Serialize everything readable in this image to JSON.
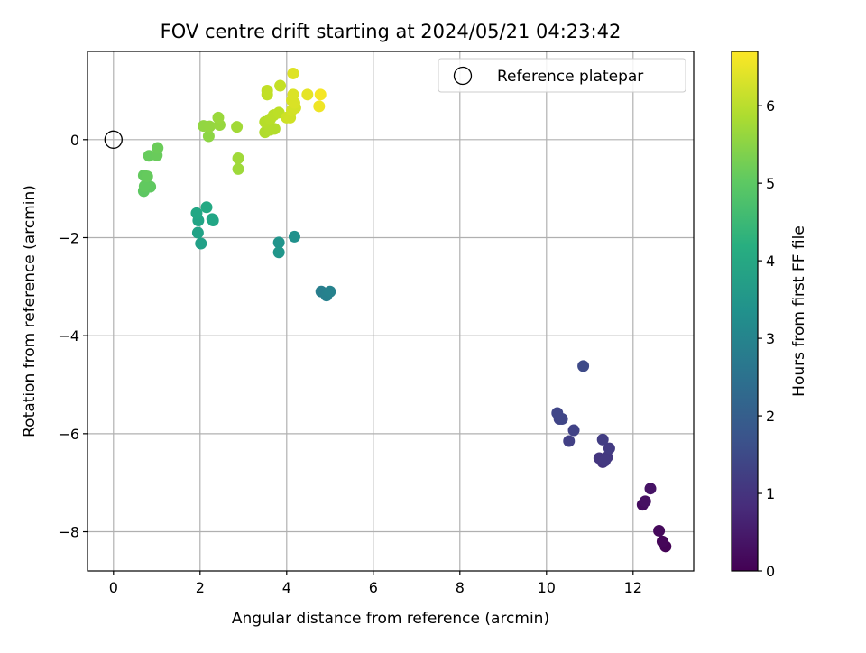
{
  "chart_data": {
    "type": "scatter",
    "title": "FOV centre drift starting at 2024/05/21 04:23:42",
    "xlabel": "Angular distance from reference (arcmin)",
    "ylabel": "Rotation from reference (arcmin)",
    "xlim": [
      -0.6,
      13.4
    ],
    "ylim": [
      -8.8,
      1.8
    ],
    "xticks": [
      0,
      2,
      4,
      6,
      8,
      10,
      12
    ],
    "yticks": [
      -8,
      -6,
      -4,
      -2,
      0
    ],
    "xtick_labels": [
      "0",
      "2",
      "4",
      "6",
      "8",
      "10",
      "12"
    ],
    "ytick_labels": [
      "−8",
      "−6",
      "−4",
      "−2",
      "0"
    ],
    "grid": true,
    "colormap": "viridis",
    "colorbar": {
      "label": "Hours from first FF file",
      "range": [
        0,
        6.7
      ],
      "ticks": [
        0,
        1,
        2,
        3,
        4,
        5,
        6
      ],
      "tick_labels": [
        "0",
        "1",
        "2",
        "3",
        "4",
        "5",
        "6"
      ]
    },
    "legend": {
      "position": "top-right",
      "entries": [
        {
          "label": "Reference platepar",
          "marker": "open-circle"
        }
      ]
    },
    "reference_point": {
      "x": 0,
      "y": 0
    },
    "points": [
      {
        "x": 12.75,
        "y": -8.3,
        "t": 0.05
      },
      {
        "x": 12.68,
        "y": -8.2,
        "t": 0.1
      },
      {
        "x": 12.6,
        "y": -7.98,
        "t": 0.15
      },
      {
        "x": 12.22,
        "y": -7.45,
        "t": 0.22
      },
      {
        "x": 12.28,
        "y": -7.38,
        "t": 0.28
      },
      {
        "x": 12.4,
        "y": -7.12,
        "t": 0.35
      },
      {
        "x": 11.3,
        "y": -6.58,
        "t": 1.0
      },
      {
        "x": 11.22,
        "y": -6.5,
        "t": 1.05
      },
      {
        "x": 11.4,
        "y": -6.48,
        "t": 1.08
      },
      {
        "x": 11.35,
        "y": -6.55,
        "t": 1.1
      },
      {
        "x": 11.45,
        "y": -6.3,
        "t": 1.15
      },
      {
        "x": 11.3,
        "y": -6.12,
        "t": 1.2
      },
      {
        "x": 10.52,
        "y": -6.15,
        "t": 1.25
      },
      {
        "x": 10.63,
        "y": -5.93,
        "t": 1.3
      },
      {
        "x": 10.3,
        "y": -5.7,
        "t": 1.35
      },
      {
        "x": 10.36,
        "y": -5.7,
        "t": 1.38
      },
      {
        "x": 10.25,
        "y": -5.58,
        "t": 1.4
      },
      {
        "x": 10.85,
        "y": -4.62,
        "t": 1.5
      },
      {
        "x": 4.8,
        "y": -3.1,
        "t": 2.85
      },
      {
        "x": 4.92,
        "y": -3.18,
        "t": 2.9
      },
      {
        "x": 5.0,
        "y": -3.1,
        "t": 2.95
      },
      {
        "x": 4.18,
        "y": -1.98,
        "t": 3.35
      },
      {
        "x": 3.82,
        "y": -2.1,
        "t": 3.45
      },
      {
        "x": 3.82,
        "y": -2.3,
        "t": 3.5
      },
      {
        "x": 2.02,
        "y": -2.12,
        "t": 3.8
      },
      {
        "x": 1.95,
        "y": -1.9,
        "t": 3.85
      },
      {
        "x": 1.96,
        "y": -1.65,
        "t": 3.9
      },
      {
        "x": 2.28,
        "y": -1.62,
        "t": 3.92
      },
      {
        "x": 2.3,
        "y": -1.65,
        "t": 3.95
      },
      {
        "x": 1.92,
        "y": -1.5,
        "t": 4.0
      },
      {
        "x": 2.15,
        "y": -1.38,
        "t": 4.05
      },
      {
        "x": 0.7,
        "y": -1.05,
        "t": 5.0
      },
      {
        "x": 0.85,
        "y": -0.96,
        "t": 5.03
      },
      {
        "x": 0.72,
        "y": -0.95,
        "t": 5.05
      },
      {
        "x": 0.7,
        "y": -0.73,
        "t": 5.08
      },
      {
        "x": 0.78,
        "y": -0.75,
        "t": 5.1
      },
      {
        "x": 0.82,
        "y": -0.33,
        "t": 5.12
      },
      {
        "x": 1.0,
        "y": -0.32,
        "t": 5.15
      },
      {
        "x": 1.02,
        "y": -0.17,
        "t": 5.18
      },
      {
        "x": 2.2,
        "y": 0.07,
        "t": 5.55
      },
      {
        "x": 2.08,
        "y": 0.28,
        "t": 5.6
      },
      {
        "x": 2.22,
        "y": 0.27,
        "t": 5.62
      },
      {
        "x": 2.45,
        "y": 0.3,
        "t": 5.65
      },
      {
        "x": 2.42,
        "y": 0.45,
        "t": 5.68
      },
      {
        "x": 2.88,
        "y": -0.6,
        "t": 5.72
      },
      {
        "x": 2.88,
        "y": -0.38,
        "t": 5.74
      },
      {
        "x": 2.85,
        "y": 0.26,
        "t": 5.76
      },
      {
        "x": 3.5,
        "y": 0.15,
        "t": 5.9
      },
      {
        "x": 3.62,
        "y": 0.2,
        "t": 5.92
      },
      {
        "x": 3.72,
        "y": 0.22,
        "t": 5.93
      },
      {
        "x": 3.5,
        "y": 0.36,
        "t": 5.95
      },
      {
        "x": 3.62,
        "y": 0.42,
        "t": 5.97
      },
      {
        "x": 3.7,
        "y": 0.5,
        "t": 6.0
      },
      {
        "x": 3.82,
        "y": 0.55,
        "t": 6.02
      },
      {
        "x": 3.55,
        "y": 0.92,
        "t": 6.05
      },
      {
        "x": 3.55,
        "y": 1.0,
        "t": 6.07
      },
      {
        "x": 3.85,
        "y": 1.1,
        "t": 6.1
      },
      {
        "x": 4.0,
        "y": 0.45,
        "t": 6.2
      },
      {
        "x": 4.08,
        "y": 0.45,
        "t": 6.22
      },
      {
        "x": 4.12,
        "y": 0.6,
        "t": 6.25
      },
      {
        "x": 4.2,
        "y": 0.65,
        "t": 6.27
      },
      {
        "x": 4.12,
        "y": 0.8,
        "t": 6.3
      },
      {
        "x": 4.18,
        "y": 0.75,
        "t": 6.32
      },
      {
        "x": 4.15,
        "y": 0.92,
        "t": 6.34
      },
      {
        "x": 4.15,
        "y": 1.35,
        "t": 6.38
      },
      {
        "x": 4.48,
        "y": 0.92,
        "t": 6.45
      },
      {
        "x": 4.75,
        "y": 0.68,
        "t": 6.55
      },
      {
        "x": 4.78,
        "y": 0.92,
        "t": 6.62
      }
    ]
  }
}
